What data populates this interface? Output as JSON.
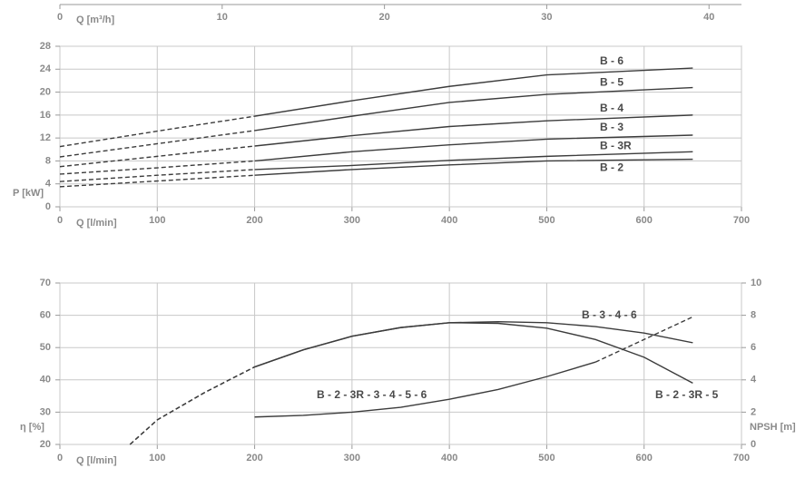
{
  "chart_data": [
    {
      "type": "line",
      "y_label": "P [kW]",
      "x_label": "Q [l/min]",
      "x2_label": "Q [m³/h]",
      "x": [
        0,
        100,
        200,
        300,
        400,
        500,
        650
      ],
      "xlim": [
        0,
        700
      ],
      "xticks": [
        0,
        100,
        200,
        300,
        400,
        500,
        600,
        700
      ],
      "x2lim": [
        0,
        42
      ],
      "x2ticks": [
        0,
        10,
        20,
        30,
        40
      ],
      "ylim": [
        0,
        28
      ],
      "yticks": [
        0,
        4,
        8,
        12,
        16,
        20,
        24,
        28
      ],
      "grid": true,
      "series": [
        {
          "name": "B - 6",
          "color": "#3c3c3c",
          "values": [
            10.5,
            13.2,
            15.8,
            18.5,
            21,
            23,
            24.2
          ],
          "styles": [
            "dashed",
            "dashed",
            "solid",
            "solid",
            "solid",
            "solid"
          ]
        },
        {
          "name": "B - 5",
          "color": "#3c3c3c",
          "values": [
            8.7,
            11,
            13.3,
            15.8,
            18.2,
            19.6,
            20.8
          ],
          "styles": [
            "dashed",
            "dashed",
            "solid",
            "solid",
            "solid",
            "solid"
          ]
        },
        {
          "name": "B - 4",
          "color": "#3c3c3c",
          "values": [
            7,
            8.8,
            10.6,
            12.4,
            14,
            15,
            16
          ],
          "styles": [
            "dashed",
            "dashed",
            "solid",
            "solid",
            "solid",
            "solid"
          ]
        },
        {
          "name": "B - 3",
          "color": "#3c3c3c",
          "values": [
            5.7,
            6.8,
            8,
            9.6,
            10.8,
            11.8,
            12.5
          ],
          "styles": [
            "dashed",
            "dashed",
            "solid",
            "solid",
            "solid",
            "solid"
          ]
        },
        {
          "name": "B - 3R",
          "color": "#3c3c3c",
          "values": [
            4.4,
            5.5,
            6.5,
            7.2,
            8.1,
            8.8,
            9.6
          ],
          "styles": [
            "dashed",
            "dashed",
            "solid",
            "solid",
            "solid",
            "solid"
          ]
        },
        {
          "name": "B - 2",
          "color": "#3c3c3c",
          "values": [
            3.5,
            4.5,
            5.5,
            6.5,
            7.3,
            8,
            8.3
          ],
          "styles": [
            "dashed",
            "dashed",
            "solid",
            "solid",
            "solid",
            "solid"
          ]
        }
      ]
    },
    {
      "type": "line",
      "y_label": "η [%]",
      "y2_label": "NPSH [m]",
      "x_label": "Q [l/min]",
      "x": [
        72,
        100,
        150,
        200,
        250,
        300,
        350,
        400,
        450,
        500,
        550,
        600,
        650
      ],
      "xlim": [
        0,
        700
      ],
      "xticks": [
        0,
        100,
        200,
        300,
        400,
        500,
        600,
        700
      ],
      "ylim": [
        20,
        70
      ],
      "yticks": [
        20,
        30,
        40,
        50,
        60,
        70
      ],
      "y2lim": [
        0,
        10
      ],
      "y2ticks": [
        0,
        2,
        4,
        6,
        8,
        10
      ],
      "grid": true,
      "series": [
        {
          "name": "B - 3 - 4 - 6",
          "color": "#3c3c3c",
          "values": [
            20,
            27.6,
            36.3,
            44,
            49.3,
            53.5,
            56.2,
            57.7,
            58,
            57.7,
            56.5,
            54.5,
            51.5
          ],
          "styles": [
            "dashed",
            "dashed",
            "dashed",
            "solid",
            "solid",
            "solid",
            "solid",
            "solid",
            "solid",
            "solid",
            "solid",
            "solid"
          ]
        },
        {
          "name": "B - 2 - 3R - 5",
          "color": "#3c3c3c",
          "values": [
            20,
            27.6,
            36.3,
            44,
            49.3,
            53.5,
            56.2,
            57.7,
            57.5,
            56,
            52.5,
            47,
            39
          ],
          "styles": [
            "dashed",
            "dashed",
            "dashed",
            "solid",
            "solid",
            "solid",
            "solid",
            "solid",
            "solid",
            "solid",
            "solid",
            "solid"
          ]
        },
        {
          "name": "B - 2 - 3R - 3 - 4 - 5 - 6",
          "color": "#3c3c3c",
          "axis": "y2",
          "values": [
            null,
            null,
            null,
            1.7,
            1.8,
            2.0,
            2.3,
            2.8,
            3.4,
            4.2,
            5.1,
            6.5,
            7.9
          ],
          "styles": [
            "solid",
            "solid",
            "solid",
            "solid",
            "solid",
            "solid",
            "solid",
            "solid",
            "solid",
            "solid",
            "dashed",
            "dashed"
          ]
        }
      ]
    }
  ]
}
